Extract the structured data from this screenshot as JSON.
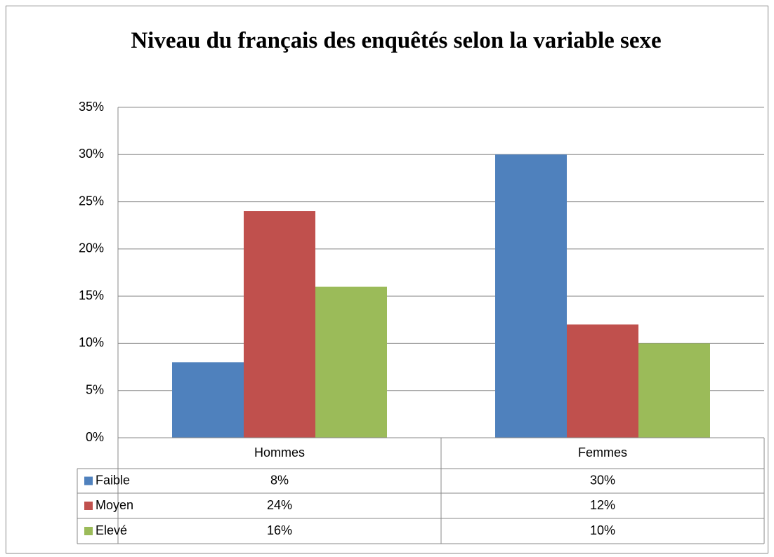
{
  "chart_data": {
    "type": "bar",
    "title": "Niveau du français des enquêtés selon la variable sexe",
    "categories": [
      "Hommes",
      "Femmes"
    ],
    "series": [
      {
        "name": "Faible",
        "color": "#4f81bd",
        "values": [
          8,
          30
        ],
        "value_labels": [
          "8%",
          "30%"
        ]
      },
      {
        "name": "Moyen",
        "color": "#c0504d",
        "values": [
          24,
          12
        ],
        "value_labels": [
          "24%",
          "12%"
        ]
      },
      {
        "name": "Elevé",
        "color": "#9bbb59",
        "values": [
          16,
          10
        ],
        "value_labels": [
          "16%",
          "10%"
        ]
      }
    ],
    "ylim": [
      0,
      35
    ],
    "yticks": [
      {
        "value": 0,
        "label": "0%"
      },
      {
        "value": 5,
        "label": "5%"
      },
      {
        "value": 10,
        "label": "10%"
      },
      {
        "value": 15,
        "label": "15%"
      },
      {
        "value": 20,
        "label": "20%"
      },
      {
        "value": 25,
        "label": "25%"
      },
      {
        "value": 30,
        "label": "30%"
      },
      {
        "value": 35,
        "label": "35%"
      }
    ],
    "grid": true
  }
}
